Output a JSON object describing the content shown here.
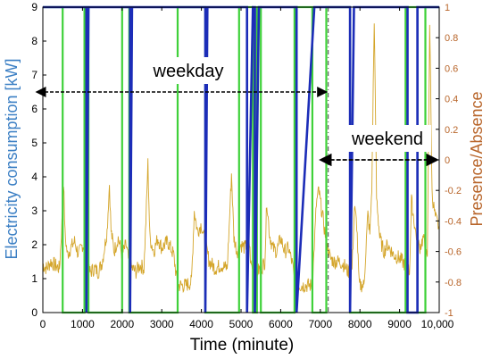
{
  "chart_data": {
    "type": "line",
    "xlabel": "Time (minute)",
    "ylabel_left": "Electricity consumption [kW]",
    "ylabel_right": "Presence/Absence",
    "xlim": [
      0,
      10000
    ],
    "ylim_left": [
      0,
      9
    ],
    "ylim_right": [
      -1,
      1
    ],
    "x_ticks": [
      "0",
      "1000",
      "2000",
      "3000",
      "4000",
      "5000",
      "6000",
      "7000",
      "8000",
      "9000",
      "10,000"
    ],
    "x_tick_values": [
      0,
      1000,
      2000,
      3000,
      4000,
      5000,
      6000,
      7000,
      8000,
      9000,
      10000
    ],
    "y_left_ticks": [
      "0",
      "1",
      "2",
      "3",
      "4",
      "5",
      "6",
      "7",
      "8",
      "9"
    ],
    "y_right_ticks": [
      "-1",
      "-0.8",
      "-0.6",
      "-0.4",
      "-0.2",
      "0",
      "0.2",
      "0.4",
      "0.6",
      "0.8",
      "1"
    ],
    "colors": {
      "consumption": "#d4a52a",
      "presence_green": "#3fd13a",
      "presence_blue": "#1c2db8",
      "left_axis_label": "#3b7fc4",
      "right_axis_label": "#b8652a",
      "annotation": "#000000"
    },
    "consumption_profile": [
      [
        0,
        1.4
      ],
      [
        100,
        1.3
      ],
      [
        200,
        1.5
      ],
      [
        300,
        1.4
      ],
      [
        420,
        1.3
      ],
      [
        480,
        2.6
      ],
      [
        520,
        3.9
      ],
      [
        560,
        2.3
      ],
      [
        620,
        1.7
      ],
      [
        700,
        1.9
      ],
      [
        800,
        2.1
      ],
      [
        900,
        1.7
      ],
      [
        1000,
        2.0
      ],
      [
        1080,
        1.9
      ],
      [
        1120,
        1.2
      ],
      [
        1200,
        1.2
      ],
      [
        1300,
        1.3
      ],
      [
        1400,
        1.2
      ],
      [
        1500,
        1.5
      ],
      [
        1620,
        2.4
      ],
      [
        1680,
        3.8
      ],
      [
        1720,
        2.4
      ],
      [
        1800,
        1.8
      ],
      [
        1900,
        2.2
      ],
      [
        2000,
        1.7
      ],
      [
        2100,
        2.0
      ],
      [
        2180,
        1.4
      ],
      [
        2250,
        1.3
      ],
      [
        2350,
        1.2
      ],
      [
        2450,
        1.4
      ],
      [
        2550,
        1.3
      ],
      [
        2600,
        2.7
      ],
      [
        2650,
        4.4
      ],
      [
        2700,
        2.2
      ],
      [
        2800,
        1.8
      ],
      [
        2900,
        2.2
      ],
      [
        3000,
        1.9
      ],
      [
        3150,
        2.1
      ],
      [
        3300,
        1.7
      ],
      [
        3400,
        0.8
      ],
      [
        3600,
        0.8
      ],
      [
        3750,
        0.9
      ],
      [
        3820,
        3.0
      ],
      [
        3900,
        2.4
      ],
      [
        4000,
        2.6
      ],
      [
        4100,
        2.0
      ],
      [
        4200,
        1.5
      ],
      [
        4350,
        1.3
      ],
      [
        4500,
        1.4
      ],
      [
        4650,
        1.3
      ],
      [
        4700,
        2.5
      ],
      [
        4760,
        4.1
      ],
      [
        4820,
        2.2
      ],
      [
        4900,
        1.8
      ],
      [
        5000,
        2.0
      ],
      [
        5100,
        1.9
      ],
      [
        5200,
        2.2
      ],
      [
        5250,
        1.4
      ],
      [
        5400,
        1.2
      ],
      [
        5500,
        1.3
      ],
      [
        5600,
        1.5
      ],
      [
        5650,
        3.3
      ],
      [
        5720,
        2.3
      ],
      [
        5800,
        1.9
      ],
      [
        5900,
        1.8
      ],
      [
        6000,
        2.2
      ],
      [
        6100,
        1.8
      ],
      [
        6200,
        1.9
      ],
      [
        6300,
        1.4
      ],
      [
        6350,
        0.9
      ],
      [
        6500,
        0.8
      ],
      [
        6650,
        0.8
      ],
      [
        6800,
        0.8
      ],
      [
        6900,
        3.2
      ],
      [
        6960,
        3.6
      ],
      [
        7050,
        2.9
      ],
      [
        7150,
        2.1
      ],
      [
        7250,
        1.6
      ],
      [
        7350,
        1.5
      ],
      [
        7500,
        1.5
      ],
      [
        7600,
        1.4
      ],
      [
        7700,
        1.2
      ],
      [
        7800,
        1.3
      ],
      [
        7860,
        3.1
      ],
      [
        7920,
        2.6
      ],
      [
        7980,
        0.8
      ],
      [
        8100,
        0.8
      ],
      [
        8200,
        2.9
      ],
      [
        8250,
        2.3
      ],
      [
        8300,
        3.7
      ],
      [
        8360,
        8.7
      ],
      [
        8420,
        3.4
      ],
      [
        8500,
        2.2
      ],
      [
        8600,
        1.8
      ],
      [
        8700,
        2.0
      ],
      [
        8850,
        1.7
      ],
      [
        9000,
        1.6
      ],
      [
        9150,
        1.4
      ],
      [
        9250,
        1.2
      ],
      [
        9300,
        3.3
      ],
      [
        9400,
        2.4
      ],
      [
        9500,
        1.9
      ],
      [
        9600,
        2.2
      ],
      [
        9700,
        1.5
      ],
      [
        9760,
        8.6
      ],
      [
        9820,
        3.5
      ],
      [
        9900,
        2.8
      ],
      [
        10000,
        2.5
      ]
    ],
    "presence_green_x": [
      0,
      500,
      500,
      1050,
      1050,
      1150,
      1150,
      2000,
      2000,
      2180,
      2180,
      3400,
      3400,
      4100,
      4100,
      4950,
      4950,
      5300,
      5300,
      5400,
      5400,
      5500,
      5500,
      6350,
      6350,
      6800,
      6800,
      7150,
      7150,
      7750,
      7750,
      9150,
      9150,
      9450,
      9450,
      9650,
      9650,
      10000
    ],
    "presence_green_y": [
      1,
      1,
      -1,
      -1,
      1,
      1,
      -1,
      -1,
      1,
      1,
      -1,
      -1,
      1,
      1,
      -1,
      -1,
      1,
      1,
      -1,
      -1,
      1,
      1,
      -1,
      -1,
      1,
      1,
      -1,
      -1,
      1,
      1,
      -1,
      -1,
      1,
      1,
      -1,
      -1,
      1,
      1
    ],
    "presence_blue_x": [
      0,
      1100,
      1100,
      1150,
      1150,
      2200,
      2200,
      2250,
      2250,
      4100,
      4100,
      4150,
      4150,
      5150,
      5150,
      5300,
      5300,
      5350,
      5350,
      5450,
      5450,
      6400,
      6400,
      6850,
      6850,
      7750,
      7750,
      7850,
      7850,
      9200,
      9200,
      9450,
      9450,
      10000
    ],
    "presence_blue_y": [
      1,
      1,
      -1,
      1,
      1,
      1,
      -1,
      1,
      1,
      1,
      -1,
      1,
      1,
      1,
      -1,
      1,
      1,
      1,
      -1,
      1,
      1,
      1,
      -1,
      1,
      1,
      1,
      -1,
      1,
      1,
      1,
      -1,
      -1,
      1,
      1
    ],
    "weekday_start": 7200,
    "annotations": [
      {
        "text": "weekday",
        "from_x": 0,
        "to_x": 7200,
        "y_kw": 6.5
      },
      {
        "text": "weekend",
        "from_x": 7200,
        "to_x": 10000,
        "y_kw": 4.5
      }
    ]
  }
}
